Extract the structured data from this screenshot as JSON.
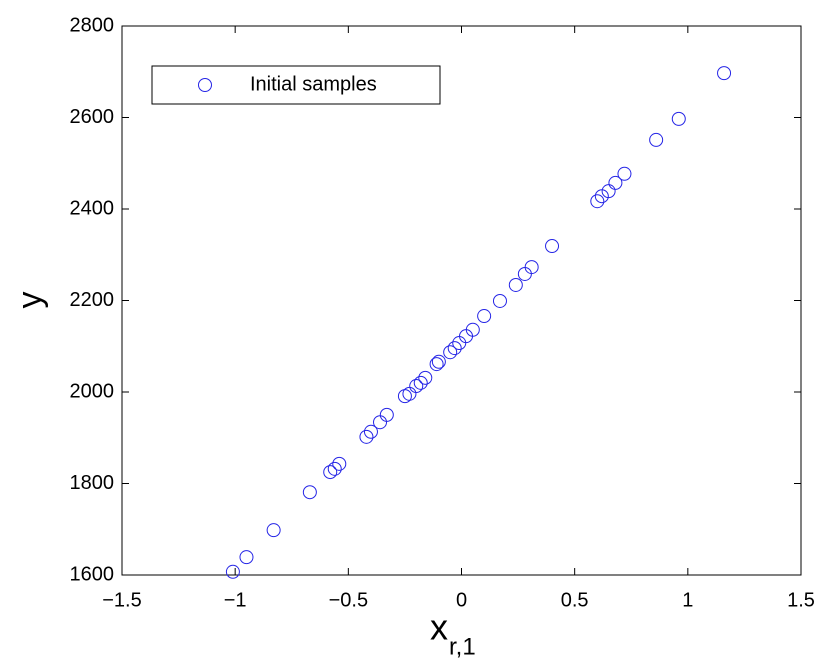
{
  "chart_data": {
    "type": "scatter",
    "xlabel": "x",
    "xlabel_sub": "r,1",
    "ylabel": "y",
    "series": [
      {
        "name": "Initial samples",
        "color": "#2424e6",
        "x": [
          -1.01,
          -0.95,
          -0.83,
          -0.67,
          -0.58,
          -0.56,
          -0.54,
          -0.42,
          -0.4,
          -0.36,
          -0.33,
          -0.25,
          -0.23,
          -0.2,
          -0.18,
          -0.16,
          -0.11,
          -0.1,
          -0.05,
          -0.03,
          -0.01,
          0.02,
          0.05,
          0.1,
          0.17,
          0.24,
          0.28,
          0.31,
          0.4,
          0.6,
          0.62,
          0.65,
          0.68,
          0.72,
          0.86,
          0.96,
          1.16
        ],
        "values": [
          1607,
          1639,
          1698,
          1781,
          1825,
          1832,
          1843,
          1902,
          1913,
          1934,
          1950,
          1991,
          1996,
          2013,
          2020,
          2031,
          2061,
          2066,
          2087,
          2096,
          2107,
          2122,
          2136,
          2166,
          2199,
          2234,
          2258,
          2273,
          2319,
          2417,
          2428,
          2439,
          2457,
          2477,
          2551,
          2597,
          2697
        ]
      }
    ],
    "xlim": [
      -1.5,
      1.5
    ],
    "xticks": [
      {
        "value": -1.5,
        "label": "−1.5"
      },
      {
        "value": -1,
        "label": "−1"
      },
      {
        "value": -0.5,
        "label": "−0.5"
      },
      0,
      0.5,
      1,
      1.5
    ],
    "ylim": [
      1600,
      2800
    ],
    "yticks": [
      1600,
      1800,
      2000,
      2200,
      2400,
      2600,
      2800
    ],
    "grid": false,
    "legend": "upper left"
  }
}
